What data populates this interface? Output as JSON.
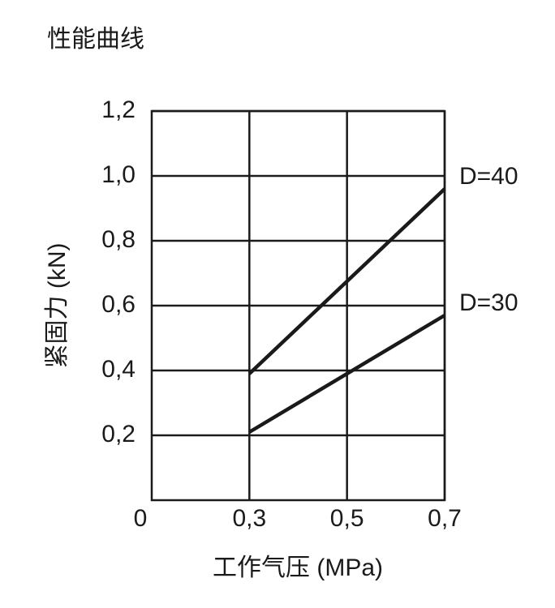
{
  "chart_data": {
    "type": "line",
    "title": "性能曲线",
    "x_label": "工作气压 (MPa)",
    "y_label": "紧固力 (kN)",
    "origin_label": "0",
    "xlim": [
      0.1,
      0.7
    ],
    "xticks": [
      {
        "value": 0.3,
        "label": "0,3"
      },
      {
        "value": 0.5,
        "label": "0,5"
      },
      {
        "value": 0.7,
        "label": "0,7"
      }
    ],
    "ylim": [
      0,
      1.2
    ],
    "yticks": [
      {
        "value": 0.2,
        "label": "0,2"
      },
      {
        "value": 0.4,
        "label": "0,4"
      },
      {
        "value": 0.6,
        "label": "0,6"
      },
      {
        "value": 0.8,
        "label": "0,8"
      },
      {
        "value": 1.0,
        "label": "1,0"
      },
      {
        "value": 1.2,
        "label": "1,2"
      }
    ],
    "grid": true,
    "series": [
      {
        "name": "D=40",
        "color": "#1a1a1a",
        "x": [
          0.3,
          0.7
        ],
        "values": [
          0.39,
          0.96
        ]
      },
      {
        "name": "D=30",
        "color": "#1a1a1a",
        "x": [
          0.3,
          0.7
        ],
        "values": [
          0.21,
          0.57
        ]
      }
    ]
  }
}
